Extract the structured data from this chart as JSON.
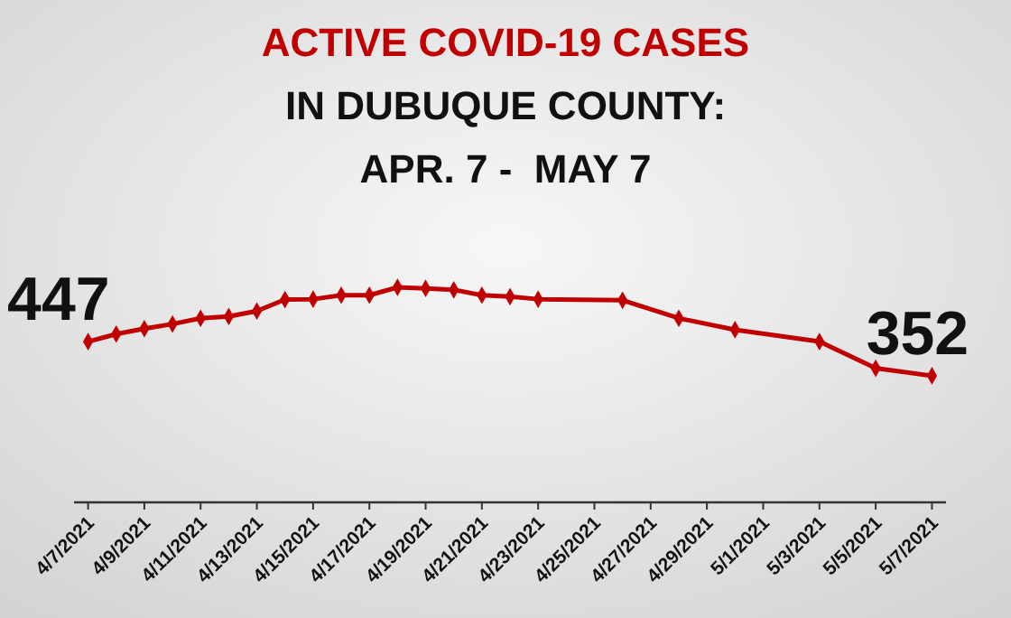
{
  "chart_data": {
    "type": "line",
    "title": "ACTIVE COVID-19 CASES",
    "subtitle": "IN DUBUQUE COUNTY:\nAPR. 7 -  MAY 7",
    "x": [
      "2021-04-07",
      "2021-04-08",
      "2021-04-09",
      "2021-04-10",
      "2021-04-11",
      "2021-04-12",
      "2021-04-13",
      "2021-04-14",
      "2021-04-15",
      "2021-04-16",
      "2021-04-17",
      "2021-04-18",
      "2021-04-19",
      "2021-04-20",
      "2021-04-21",
      "2021-04-22",
      "2021-04-23",
      "2021-04-26",
      "2021-04-28",
      "2021-04-30",
      "2021-05-03",
      "2021-05-05",
      "2021-05-07"
    ],
    "series": [
      {
        "color": "#c00000",
        "values": [
          447,
          468,
          483,
          496,
          512,
          517,
          532,
          564,
          565,
          576,
          576,
          598,
          595,
          591,
          576,
          572,
          565,
          562,
          512,
          480,
          447,
          373,
          352
        ],
        "value_labels": [
          "447",
          null,
          null,
          null,
          null,
          null,
          null,
          null,
          null,
          null,
          null,
          null,
          null,
          null,
          null,
          null,
          null,
          null,
          null,
          null,
          null,
          null,
          "352"
        ]
      }
    ],
    "xlim": [
      "2021-04-06T12:00",
      "2021-05-07T12:00"
    ],
    "xticks": [
      {
        "value": "2021-04-07",
        "label": "4/7/2021"
      },
      {
        "value": "2021-04-09",
        "label": "4/9/2021"
      },
      {
        "value": "2021-04-11",
        "label": "4/11/2021"
      },
      {
        "value": "2021-04-13",
        "label": "4/13/2021"
      },
      {
        "value": "2021-04-15",
        "label": "4/15/2021"
      },
      {
        "value": "2021-04-17",
        "label": "4/17/2021"
      },
      {
        "value": "2021-04-19",
        "label": "4/19/2021"
      },
      {
        "value": "2021-04-21",
        "label": "4/21/2021"
      },
      {
        "value": "2021-04-23",
        "label": "4/23/2021"
      },
      {
        "value": "2021-04-25",
        "label": "4/25/2021"
      },
      {
        "value": "2021-04-27",
        "label": "4/27/2021"
      },
      {
        "value": "2021-04-29",
        "label": "4/29/2021"
      },
      {
        "value": "2021-05-01",
        "label": "5/1/2021"
      },
      {
        "value": "2021-05-03",
        "label": "5/3/2021"
      },
      {
        "value": "2021-05-05",
        "label": "5/5/2021"
      },
      {
        "value": "2021-05-07",
        "label": "5/7/2021"
      }
    ],
    "marker": "diamond",
    "line_style": "solid"
  }
}
